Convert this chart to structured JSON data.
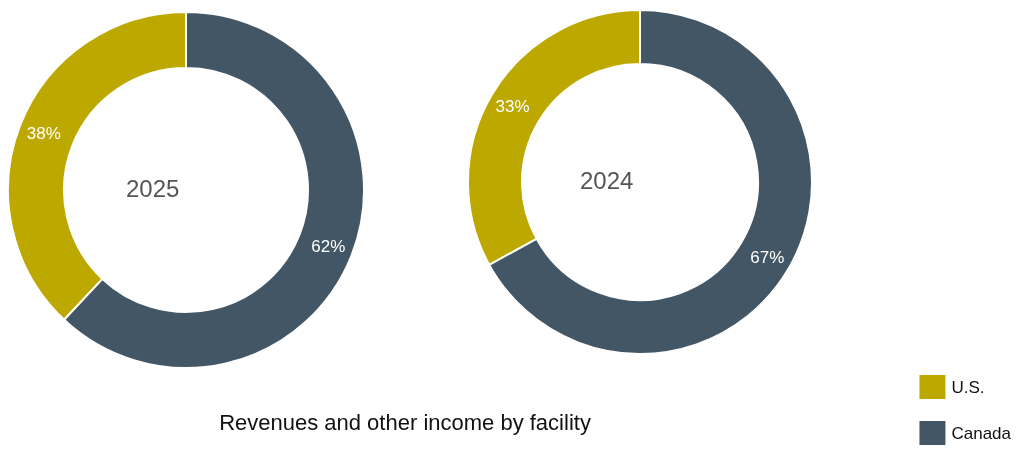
{
  "chart_data": {
    "type": "donut",
    "title": "Revenues and other income by facility",
    "categories": [
      "U.S.",
      "Canada"
    ],
    "colors": [
      "#bda800",
      "#435665"
    ],
    "legend": "bottom right",
    "series": [
      {
        "name": "2025",
        "values": [
          38,
          62
        ],
        "value_labels": [
          "38%",
          "62%"
        ]
      },
      {
        "name": "2024",
        "values": [
          33,
          67
        ],
        "value_labels": [
          "33%",
          "67%"
        ]
      }
    ]
  }
}
